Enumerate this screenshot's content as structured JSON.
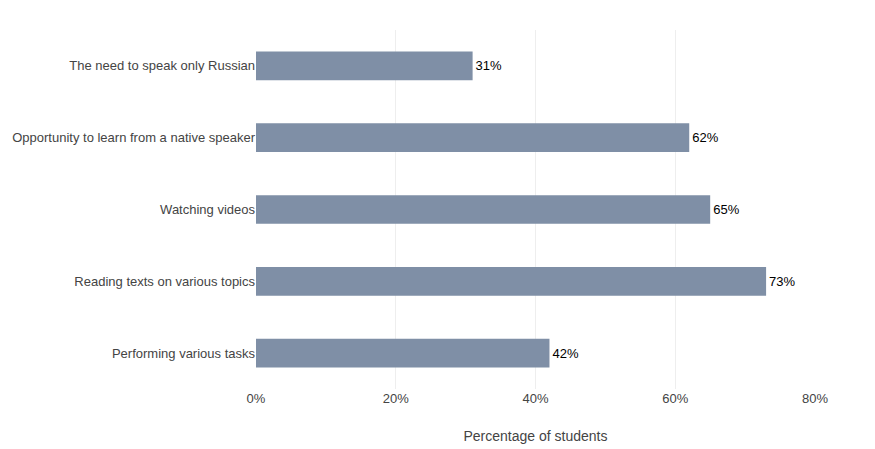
{
  "chart_data": {
    "type": "bar",
    "orientation": "horizontal",
    "categories": [
      "Performing various tasks",
      "Reading texts on various topics",
      "Watching videos",
      "Opportunity to learn from a native speaker",
      "The need to speak only Russian"
    ],
    "values": [
      42,
      73,
      65,
      62,
      31
    ],
    "value_labels": [
      "42%",
      "73%",
      "65%",
      "62%",
      "31%"
    ],
    "data_labels": true,
    "color": "#7f8fa6",
    "xlabel": "Percentage of students",
    "xlim": [
      0,
      80
    ],
    "xticks": [
      {
        "value": 0,
        "label": "0%"
      },
      {
        "value": 20,
        "label": "20%"
      },
      {
        "value": 40,
        "label": "40%"
      },
      {
        "value": 60,
        "label": "60%"
      },
      {
        "value": 80,
        "label": "80%"
      }
    ],
    "grid": true
  }
}
